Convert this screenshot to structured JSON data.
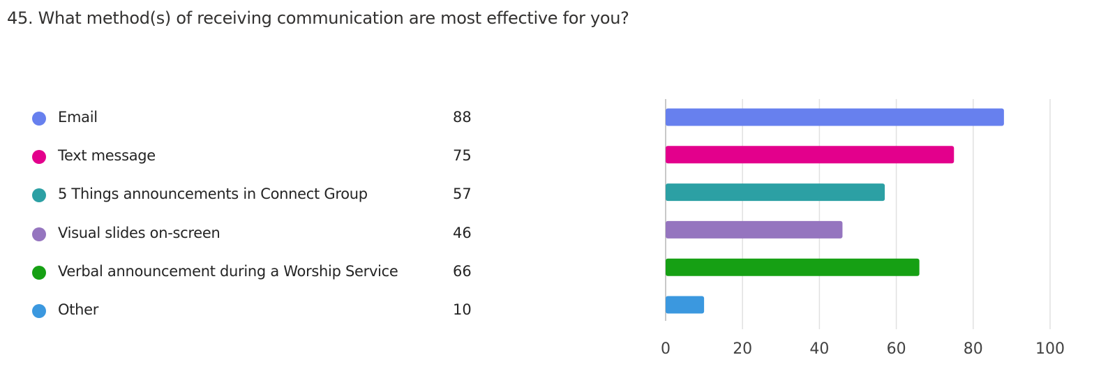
{
  "question": {
    "title": "45. What method(s) of receiving communication are most effective for you?"
  },
  "chart_data": {
    "type": "bar",
    "orientation": "horizontal",
    "title": "45. What method(s) of receiving communication are most effective for you?",
    "categories": [
      "Email",
      "Text message",
      "5 Things announcements in Connect Group",
      "Visual slides on-screen",
      "Verbal announcement during a Worship Service",
      "Other"
    ],
    "values": [
      88,
      75,
      57,
      46,
      66,
      10
    ],
    "colors": [
      "#6780EE",
      "#E3008C",
      "#2CA0A4",
      "#9575BF",
      "#16A014",
      "#3B98DF"
    ],
    "xlim": [
      0,
      100
    ],
    "xticks": [
      "0",
      "20",
      "40",
      "60",
      "80",
      "100"
    ],
    "grid": true,
    "legend_position": "left",
    "xlabel": "",
    "ylabel": ""
  }
}
